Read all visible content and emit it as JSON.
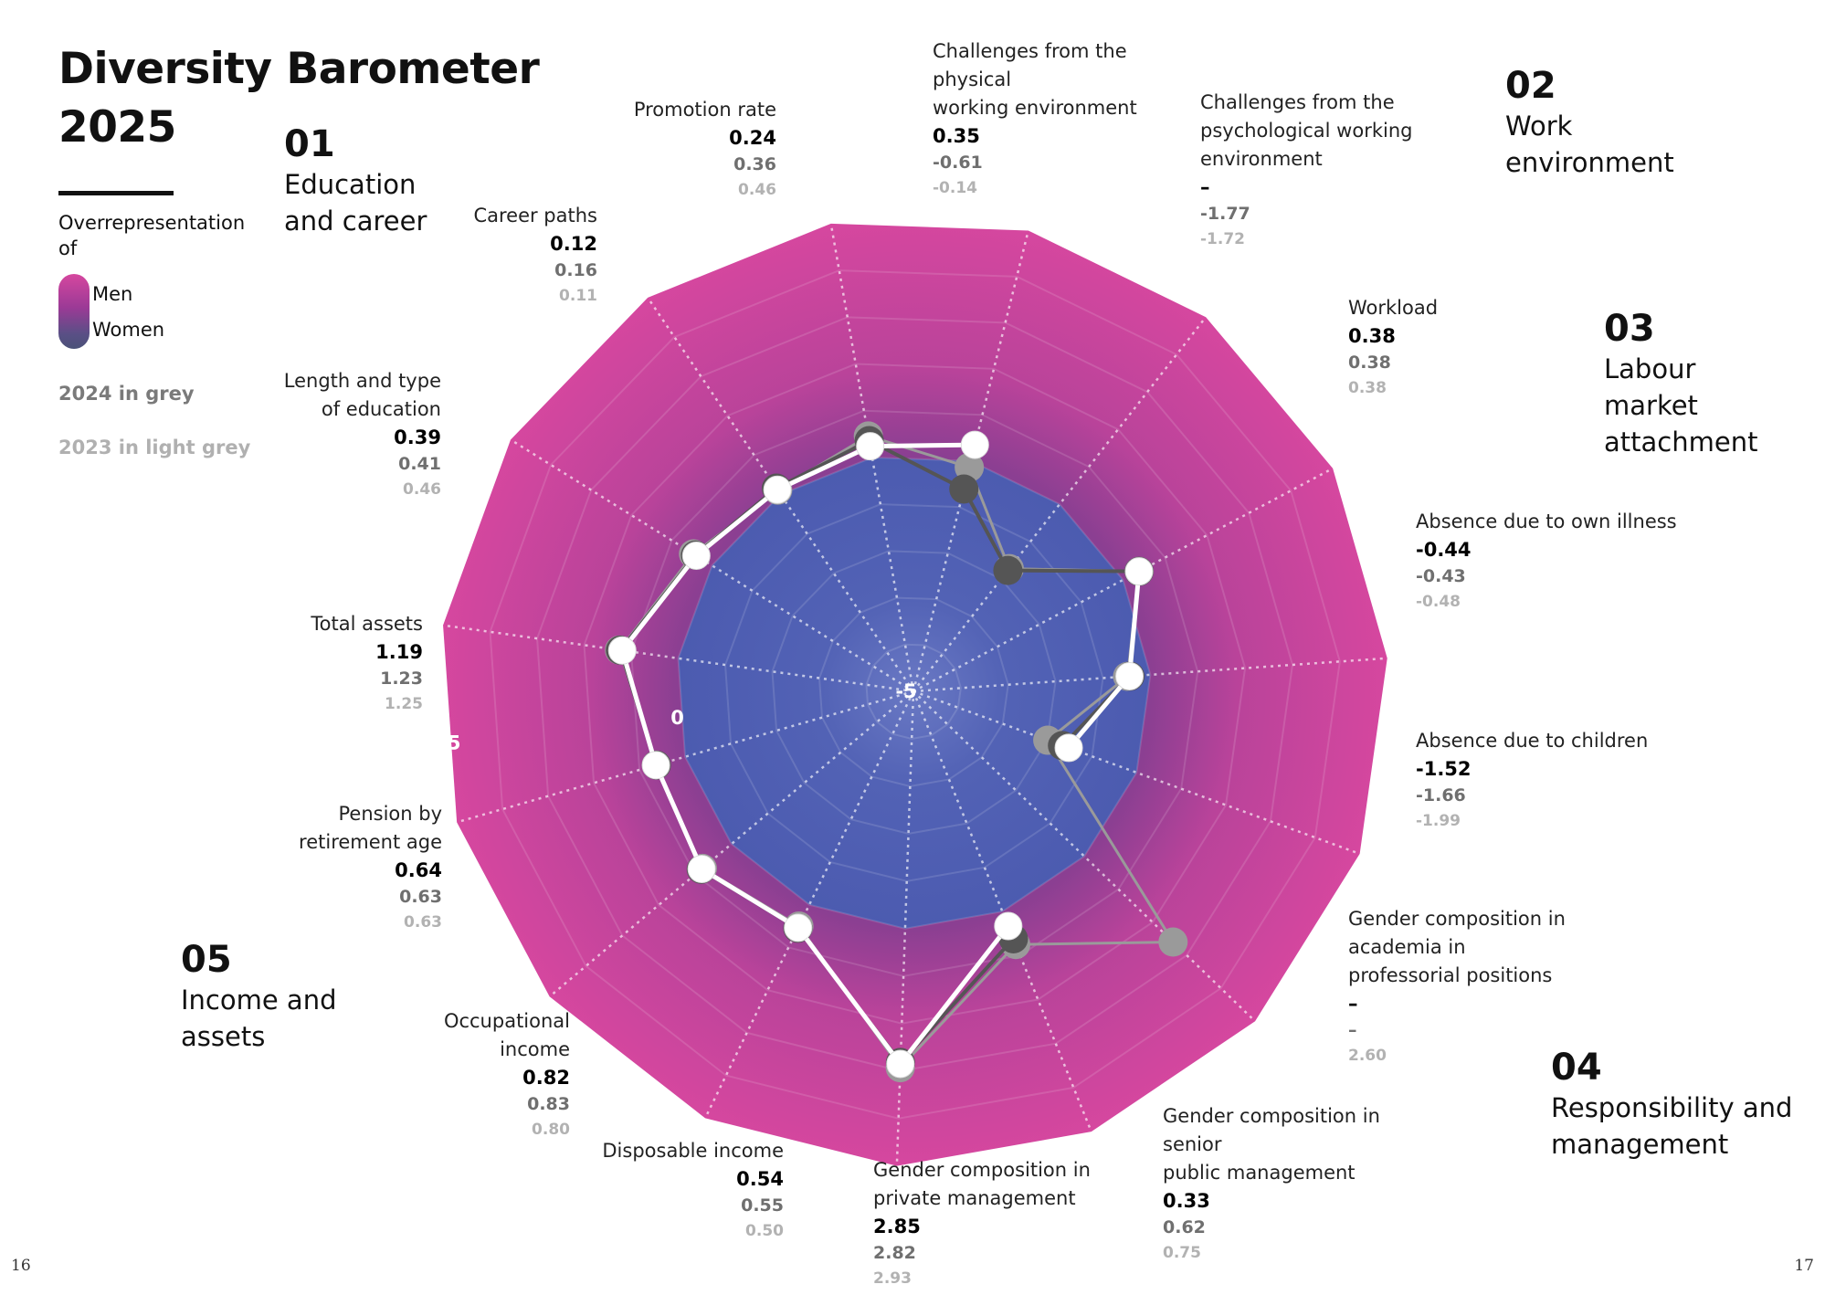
{
  "title_lines": [
    "Diversity Barometer",
    "2025"
  ],
  "legend": {
    "heading": "Overrepresentation of",
    "men_label": "Men",
    "women_label": "Women",
    "grey_note": "2024 in grey",
    "light_grey_note": "2023 in light grey"
  },
  "categories": [
    {
      "number": "01",
      "name_lines": [
        "Education",
        "and career"
      ]
    },
    {
      "number": "02",
      "name_lines": [
        "Work",
        "environment"
      ]
    },
    {
      "number": "03",
      "name_lines": [
        "Labour",
        "market",
        "attachment"
      ]
    },
    {
      "number": "04",
      "name_lines": [
        "Responsibility and",
        "management"
      ]
    },
    {
      "number": "05",
      "name_lines": [
        "Income and",
        "assets"
      ]
    }
  ],
  "colors": {
    "men": "#d6479f",
    "women": "#4c5bb0",
    "series_2025": "#ffffff",
    "series_2024": "#555555",
    "series_2023": "#9a9a9a"
  },
  "page_numbers": {
    "left": "16",
    "right": "17"
  },
  "chart_data": {
    "type": "radar",
    "scale_labels": [
      "-5",
      "0",
      "5"
    ],
    "r_range": [
      -5,
      5
    ],
    "grid": true,
    "axes": [
      {
        "name_lines": [
          "Promotion rate"
        ],
        "v2025": "0.24",
        "v2024": "0.36",
        "v2023": "0.46"
      },
      {
        "name_lines": [
          "Challenges from the physical",
          "working environment"
        ],
        "v2025": "0.35",
        "v2024": "-0.61",
        "v2023": "-0.14"
      },
      {
        "name_lines": [
          "Challenges from the",
          "psychological working",
          "environment"
        ],
        "v2025": "–",
        "v2024": "-1.77",
        "v2023": "-1.72"
      },
      {
        "name_lines": [
          "Workload"
        ],
        "v2025": "0.38",
        "v2024": "0.38",
        "v2023": "0.38"
      },
      {
        "name_lines": [
          "Absence due to own illness"
        ],
        "v2025": "-0.44",
        "v2024": "-0.43",
        "v2023": "-0.48"
      },
      {
        "name_lines": [
          "Absence due to children"
        ],
        "v2025": "-1.52",
        "v2024": "-1.66",
        "v2023": "-1.99"
      },
      {
        "name_lines": [
          "Gender composition in",
          "academia in",
          "professorial positions"
        ],
        "v2025": "–",
        "v2024": "–",
        "v2023": "2.60"
      },
      {
        "name_lines": [
          "Gender composition in senior",
          "public management"
        ],
        "v2025": "0.33",
        "v2024": "0.62",
        "v2023": "0.75"
      },
      {
        "name_lines": [
          "Gender composition in",
          "private management"
        ],
        "v2025": "2.85",
        "v2024": "2.82",
        "v2023": "2.93"
      },
      {
        "name_lines": [
          "Disposable income"
        ],
        "v2025": "0.54",
        "v2024": "0.55",
        "v2023": "0.50"
      },
      {
        "name_lines": [
          "Occupational",
          "income"
        ],
        "v2025": "0.82",
        "v2024": "0.83",
        "v2023": "0.80"
      },
      {
        "name_lines": [
          "Pension by",
          "retirement age"
        ],
        "v2025": "0.64",
        "v2024": "0.63",
        "v2023": "0.63"
      },
      {
        "name_lines": [
          "Total assets"
        ],
        "v2025": "1.19",
        "v2024": "1.23",
        "v2023": "1.25"
      },
      {
        "name_lines": [
          "Length and type",
          "of education"
        ],
        "v2025": "0.39",
        "v2024": "0.41",
        "v2023": "0.46"
      },
      {
        "name_lines": [
          "Career paths"
        ],
        "v2025": "0.12",
        "v2024": "0.16",
        "v2023": "0.11"
      }
    ]
  }
}
